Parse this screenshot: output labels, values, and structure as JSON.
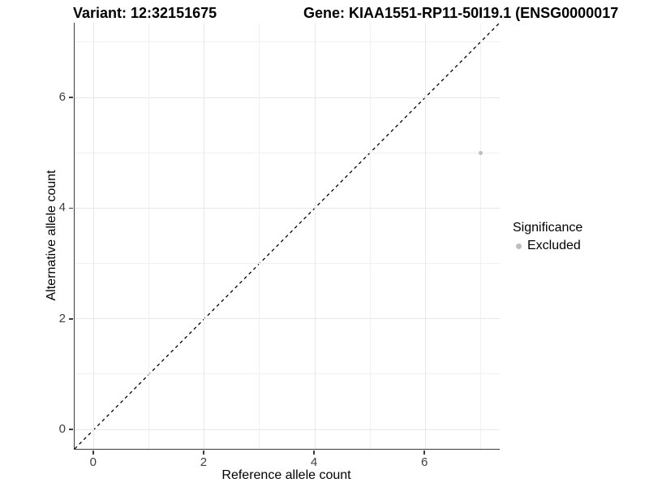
{
  "titles": {
    "left": "Variant: 12:32151675",
    "right": "Gene: KIAA1551-RP11-50I19.1 (ENSG0000017"
  },
  "chart_data": {
    "type": "scatter",
    "xlabel": "Reference allele count",
    "ylabel": "Alternative allele count",
    "xlim": [
      -0.35,
      7.35
    ],
    "ylim": [
      -0.35,
      7.35
    ],
    "x_ticks": [
      0,
      2,
      4,
      6
    ],
    "y_ticks": [
      0,
      2,
      4,
      6
    ],
    "x_minor_ticks": [
      1,
      3,
      5,
      7
    ],
    "y_minor_ticks": [
      1,
      3,
      5,
      7
    ],
    "grid": true,
    "identity_line": {
      "style": "dashed",
      "color": "#000000",
      "from": -0.35,
      "to": 7.35
    },
    "series": [
      {
        "name": "Excluded",
        "color": "#bdbdbd",
        "points": [
          {
            "x": 7,
            "y": 5
          }
        ]
      }
    ],
    "legend": {
      "title": "Significance",
      "position": "right",
      "items": [
        {
          "label": "Excluded",
          "color": "#bdbdbd"
        }
      ]
    }
  },
  "colors": {
    "axis_line": "#3c3c3c",
    "grid_major": "#e8e8e8",
    "grid_minor": "#f1f1f1",
    "point": "#bdbdbd"
  }
}
